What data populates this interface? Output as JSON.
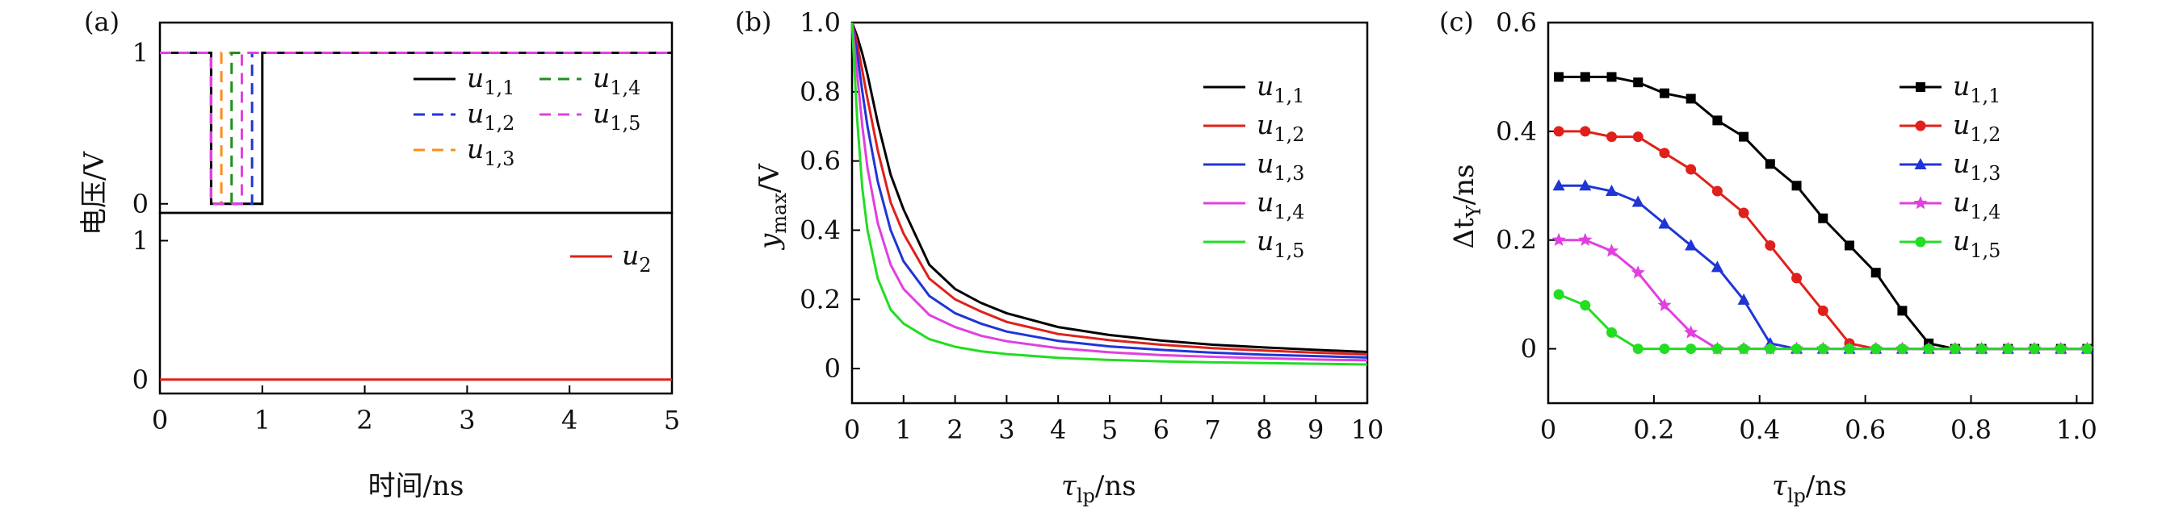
{
  "chart_data": [
    {
      "panel_label": "(a)",
      "type": "line",
      "xlabel": "时间/ns",
      "ylabel": "电压/V",
      "xlim": [
        0,
        5
      ],
      "x_ticks": [
        "0",
        "1",
        "2",
        "3",
        "4",
        "5"
      ],
      "top": {
        "ylim": [
          -0.06,
          1.2
        ],
        "y_ticks": [
          "0",
          "1"
        ],
        "series": [
          {
            "name": "u1,1",
            "legend_base": "u",
            "legend_sub": "1,1",
            "color": "#000000",
            "dash": "solid",
            "x": [
              0,
              0.5,
              0.5,
              1.0,
              1.0,
              5
            ],
            "y": [
              1,
              1,
              0,
              0,
              1,
              1
            ]
          },
          {
            "name": "u1,2",
            "legend_base": "u",
            "legend_sub": "1,2",
            "color": "#1f35d6",
            "dash": "dashed",
            "x": [
              0,
              0.5,
              0.5,
              0.9,
              0.9,
              5
            ],
            "y": [
              1,
              1,
              0,
              0,
              1,
              1
            ]
          },
          {
            "name": "u1,3",
            "legend_base": "u",
            "legend_sub": "1,3",
            "color": "#ff8c1a",
            "dash": "dashed",
            "x": [
              0,
              0.5,
              0.5,
              0.6,
              0.6,
              5
            ],
            "y": [
              1,
              1,
              0,
              0,
              1,
              1
            ]
          },
          {
            "name": "u1,4",
            "legend_base": "u",
            "legend_sub": "1,4",
            "color": "#1f8f1f",
            "dash": "dashed",
            "x": [
              0,
              0.5,
              0.5,
              0.7,
              0.7,
              5
            ],
            "y": [
              1,
              1,
              0,
              0,
              1,
              1
            ]
          },
          {
            "name": "u1,5",
            "legend_base": "u",
            "legend_sub": "1,5",
            "color": "#e040e0",
            "dash": "dashed",
            "x": [
              0,
              0.5,
              0.5,
              0.8,
              0.8,
              5
            ],
            "y": [
              1,
              1,
              0,
              0,
              1,
              1
            ]
          }
        ]
      },
      "bottom": {
        "ylim": [
          -0.1,
          1.2
        ],
        "y_ticks": [
          "0",
          "1"
        ],
        "series": [
          {
            "name": "u2",
            "legend_base": "u",
            "legend_sub": "2",
            "color": "#e0201a",
            "dash": "solid",
            "x": [
              0,
              5
            ],
            "y": [
              0,
              0
            ]
          }
        ]
      }
    },
    {
      "panel_label": "(b)",
      "type": "line",
      "xlabel_base": "τ",
      "xlabel_sub": "lp",
      "xlabel_unit": "/ns",
      "ylabel_base": "y",
      "ylabel_sub": "max",
      "ylabel_unit": "/V",
      "xlim": [
        0,
        10
      ],
      "ylim": [
        -0.1,
        1.0
      ],
      "x_ticks": [
        0,
        1,
        2,
        3,
        4,
        5,
        6,
        7,
        8,
        9,
        10
      ],
      "y_ticks": [
        0,
        0.2,
        0.4,
        0.6,
        0.8,
        1.0
      ],
      "y_tick_labels": [
        "0",
        "0.2",
        "0.4",
        "0.6",
        "0.8",
        "1.0"
      ],
      "series": [
        {
          "name": "u1,1",
          "legend_base": "u",
          "legend_sub": "1,1",
          "color": "#000000",
          "x": [
            0,
            0.1,
            0.2,
            0.3,
            0.5,
            0.75,
            1,
            1.5,
            2,
            2.5,
            3,
            4,
            5,
            6,
            7,
            8,
            9,
            10
          ],
          "y": [
            1.0,
            0.96,
            0.91,
            0.85,
            0.71,
            0.56,
            0.46,
            0.3,
            0.23,
            0.19,
            0.16,
            0.12,
            0.097,
            0.081,
            0.069,
            0.061,
            0.054,
            0.048
          ]
        },
        {
          "name": "u1,2",
          "legend_base": "u",
          "legend_sub": "1,2",
          "color": "#e0201a",
          "x": [
            0,
            0.1,
            0.2,
            0.3,
            0.5,
            0.75,
            1,
            1.5,
            2,
            2.5,
            3,
            4,
            5,
            6,
            7,
            8,
            9,
            10
          ],
          "y": [
            1.0,
            0.94,
            0.86,
            0.78,
            0.63,
            0.48,
            0.39,
            0.26,
            0.2,
            0.165,
            0.135,
            0.1,
            0.082,
            0.069,
            0.059,
            0.052,
            0.046,
            0.041
          ]
        },
        {
          "name": "u1,3",
          "legend_base": "u",
          "legend_sub": "1,3",
          "color": "#1f35d6",
          "x": [
            0,
            0.1,
            0.2,
            0.3,
            0.5,
            0.75,
            1,
            1.5,
            2,
            2.5,
            3,
            4,
            5,
            6,
            7,
            8,
            9,
            10
          ],
          "y": [
            1.0,
            0.91,
            0.8,
            0.7,
            0.54,
            0.4,
            0.31,
            0.21,
            0.16,
            0.13,
            0.107,
            0.08,
            0.064,
            0.054,
            0.046,
            0.04,
            0.036,
            0.032
          ]
        },
        {
          "name": "u1,4",
          "legend_base": "u",
          "legend_sub": "1,4",
          "color": "#e040e0",
          "x": [
            0,
            0.1,
            0.2,
            0.3,
            0.5,
            0.75,
            1,
            1.5,
            2,
            2.5,
            3,
            4,
            5,
            6,
            7,
            8,
            9,
            10
          ],
          "y": [
            1.0,
            0.85,
            0.7,
            0.58,
            0.42,
            0.3,
            0.23,
            0.155,
            0.12,
            0.095,
            0.079,
            0.059,
            0.047,
            0.039,
            0.034,
            0.03,
            0.026,
            0.024
          ]
        },
        {
          "name": "u1,5",
          "legend_base": "u",
          "legend_sub": "1,5",
          "color": "#22dd22",
          "x": [
            0,
            0.1,
            0.2,
            0.3,
            0.5,
            0.75,
            1,
            1.5,
            2,
            2.5,
            3,
            4,
            5,
            6,
            7,
            8,
            9,
            10
          ],
          "y": [
            1.0,
            0.72,
            0.52,
            0.4,
            0.26,
            0.17,
            0.13,
            0.085,
            0.063,
            0.05,
            0.042,
            0.031,
            0.025,
            0.021,
            0.018,
            0.016,
            0.014,
            0.012
          ]
        }
      ]
    },
    {
      "panel_label": "(c)",
      "type": "line",
      "xlabel_base": "τ",
      "xlabel_sub": "lp",
      "xlabel_unit": "/ns",
      "ylabel_pre": "Δt",
      "ylabel_sub": "Y",
      "ylabel_unit": "/ns",
      "xlim": [
        0,
        1.03
      ],
      "ylim": [
        -0.1,
        0.6
      ],
      "x_ticks": [
        0,
        0.2,
        0.4,
        0.6,
        0.8,
        1.0
      ],
      "x_tick_labels": [
        "0",
        "0.2",
        "0.4",
        "0.6",
        "0.8",
        "1.0"
      ],
      "y_ticks": [
        0,
        0.2,
        0.4,
        0.6
      ],
      "y_tick_labels": [
        "0",
        "0.2",
        "0.4",
        "0.6"
      ],
      "x": [
        0.02,
        0.07,
        0.12,
        0.17,
        0.22,
        0.27,
        0.32,
        0.37,
        0.42,
        0.47,
        0.52,
        0.57,
        0.62,
        0.67,
        0.72,
        0.77,
        0.82,
        0.87,
        0.92,
        0.97,
        1.02
      ],
      "series": [
        {
          "name": "u1,1",
          "legend_base": "u",
          "legend_sub": "1,1",
          "color": "#000000",
          "marker": "square",
          "y": [
            0.5,
            0.5,
            0.5,
            0.49,
            0.47,
            0.46,
            0.42,
            0.39,
            0.34,
            0.3,
            0.24,
            0.19,
            0.14,
            0.07,
            0.01,
            0,
            0,
            0,
            0,
            0,
            0
          ]
        },
        {
          "name": "u1,2",
          "legend_base": "u",
          "legend_sub": "1,2",
          "color": "#e0201a",
          "marker": "circle",
          "y": [
            0.4,
            0.4,
            0.39,
            0.39,
            0.36,
            0.33,
            0.29,
            0.25,
            0.19,
            0.13,
            0.07,
            0.01,
            0,
            0,
            0,
            0,
            0,
            0,
            0,
            0,
            0
          ]
        },
        {
          "name": "u1,3",
          "legend_base": "u",
          "legend_sub": "1,3",
          "color": "#1f35d6",
          "marker": "triangle",
          "y": [
            0.3,
            0.3,
            0.29,
            0.27,
            0.23,
            0.19,
            0.15,
            0.09,
            0.01,
            0,
            0,
            0,
            0,
            0,
            0,
            0,
            0,
            0,
            0,
            0,
            0
          ]
        },
        {
          "name": "u1,4",
          "legend_base": "u",
          "legend_sub": "1,4",
          "color": "#e040e0",
          "marker": "star",
          "y": [
            0.2,
            0.2,
            0.18,
            0.14,
            0.08,
            0.03,
            0,
            0,
            0,
            0,
            0,
            0,
            0,
            0,
            0,
            0,
            0,
            0,
            0,
            0,
            0
          ]
        },
        {
          "name": "u1,5",
          "legend_base": "u",
          "legend_sub": "1,5",
          "color": "#22dd22",
          "marker": "circle",
          "y": [
            0.1,
            0.08,
            0.03,
            0,
            0,
            0,
            0,
            0,
            0,
            0,
            0,
            0,
            0,
            0,
            0,
            0,
            0,
            0,
            0,
            0,
            0
          ]
        }
      ]
    }
  ]
}
